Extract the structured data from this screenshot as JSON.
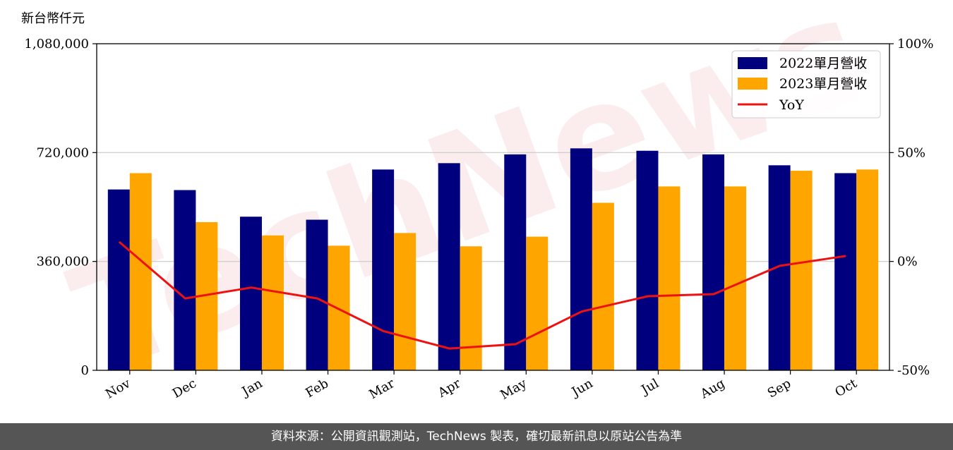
{
  "colors": {
    "series_2022": "#00007f",
    "series_2023": "#ffa500",
    "yoy": "#ee1111",
    "grid": "#c8c8c8",
    "footer_bg": "#555555"
  },
  "chart_data": {
    "type": "bar",
    "unit_label": "新台幣仟元",
    "categories": [
      "Nov",
      "Dec",
      "Jan",
      "Feb",
      "Mar",
      "Apr",
      "May",
      "Jun",
      "Jul",
      "Aug",
      "Sep",
      "Oct"
    ],
    "series": [
      {
        "name": "2022單月營收",
        "axis": "left",
        "type": "bar",
        "values": [
          598000,
          596000,
          508000,
          498000,
          664000,
          685000,
          714000,
          734000,
          726000,
          714000,
          678000,
          652000
        ]
      },
      {
        "name": "2023單月營收",
        "axis": "left",
        "type": "bar",
        "values": [
          652000,
          490000,
          446000,
          412000,
          454000,
          410000,
          442000,
          554000,
          608000,
          608000,
          660000,
          664000
        ]
      },
      {
        "name": "YoY",
        "axis": "right",
        "type": "line",
        "values": [
          9,
          -17,
          -12,
          -17,
          -32,
          -40,
          -38,
          -23,
          -16,
          -15,
          -2,
          2.5
        ]
      }
    ],
    "y_left": {
      "range": [
        0,
        1080000
      ],
      "ticks": [
        0,
        360000,
        720000,
        1080000
      ],
      "tick_labels": [
        "0",
        "360,000",
        "720,000",
        "1,080,000"
      ]
    },
    "y_right": {
      "range": [
        -50,
        100
      ],
      "ticks": [
        -50,
        0,
        50,
        100
      ],
      "tick_labels": [
        "-50%",
        "0%",
        "50%",
        "100%"
      ]
    },
    "grid": "horizontal",
    "legend_position": "top-right"
  },
  "watermark": {
    "text": "TechNews"
  },
  "footer": {
    "text": "資料來源：公開資訊觀測站，TechNews 製表，確切最新訊息以原站公告為準"
  }
}
